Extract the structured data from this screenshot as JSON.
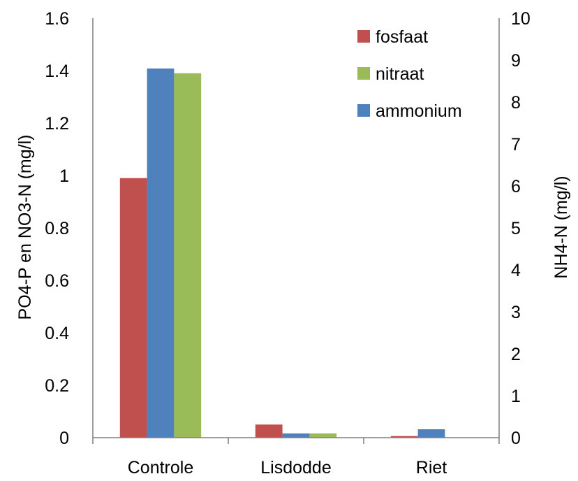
{
  "chart_data": {
    "type": "bar",
    "title": "",
    "categories": [
      "Controle",
      "Lisdodde",
      "Riet"
    ],
    "ylabel_left": "PO4-P en NO3-N (mg/l)",
    "ylabel_right": "NH4-N (mg/l)",
    "ylim_left": [
      0,
      1.6
    ],
    "ylim_right": [
      0,
      10
    ],
    "yticks_left": [
      "0",
      "0.2",
      "0.4",
      "0.6",
      "0.8",
      "1",
      "1.2",
      "1.4",
      "1.6"
    ],
    "yticks_right": [
      "0",
      "1",
      "2",
      "3",
      "4",
      "5",
      "6",
      "7",
      "8",
      "9",
      "10"
    ],
    "grid": false,
    "legend_position": "top-right",
    "series": [
      {
        "name": "fosfaat",
        "axis": "left",
        "color": "#c0504d",
        "values": [
          0.99,
          0.05,
          0.006
        ]
      },
      {
        "name": "ammonium",
        "axis": "right",
        "color": "#4f81bd",
        "values": [
          8.8,
          0.1,
          0.2
        ]
      },
      {
        "name": "nitraat",
        "axis": "left",
        "color": "#9bbb59",
        "values": [
          1.39,
          0.016,
          0
        ]
      }
    ],
    "legend": [
      {
        "name": "fosfaat",
        "color": "#c0504d"
      },
      {
        "name": "nitraat",
        "color": "#9bbb59"
      },
      {
        "name": "ammonium",
        "color": "#4f81bd"
      }
    ]
  }
}
